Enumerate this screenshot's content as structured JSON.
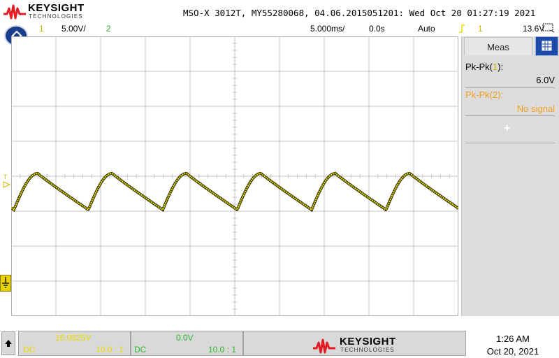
{
  "header": {
    "brand": "KEYSIGHT",
    "brand_sub": "TECHNOLOGIES",
    "instrument_info": "MSO-X 3012T, MY55280068, 04.06.2015051201: Wed Oct 20 01:27:19 2021"
  },
  "status": {
    "ch1_label": "1",
    "ch1_scale": "5.00V/",
    "ch2_label": "2",
    "timebase": "5.000ms/",
    "delay": "0.0s",
    "trigger_mode": "Auto",
    "trigger_source": "1",
    "trigger_level": "13.6V"
  },
  "colors": {
    "ch1": "#e8dc00",
    "ch2": "#2bb52b",
    "accent_blue": "#1d4aa8",
    "trigger_orange": "#f39c12",
    "meas2": "#f0a020",
    "brand_red": "#e31b23"
  },
  "measurements": {
    "tab_label": "Meas",
    "items": [
      {
        "label_prefix": "Pk-Pk(",
        "label_ch": "1",
        "label_suffix": "):",
        "value": "6.0V"
      },
      {
        "label_prefix": "Pk-Pk(",
        "label_ch": "2",
        "label_suffix": "):",
        "value": "No signal"
      }
    ],
    "add_label": "+"
  },
  "channels": {
    "ch1": {
      "offset": "16.0625V",
      "coupling": "DC",
      "probe": "10.0 : 1"
    },
    "ch2": {
      "offset": "0.0V",
      "coupling": "DC",
      "probe": "10.0 : 1"
    }
  },
  "clock": {
    "time": "1:26 AM",
    "date": "Oct 20, 2021"
  },
  "icons": {
    "home": "home-icon",
    "ground": "ground-icon",
    "up": "arrow-up-icon",
    "snapshot": "screen-icon"
  }
}
